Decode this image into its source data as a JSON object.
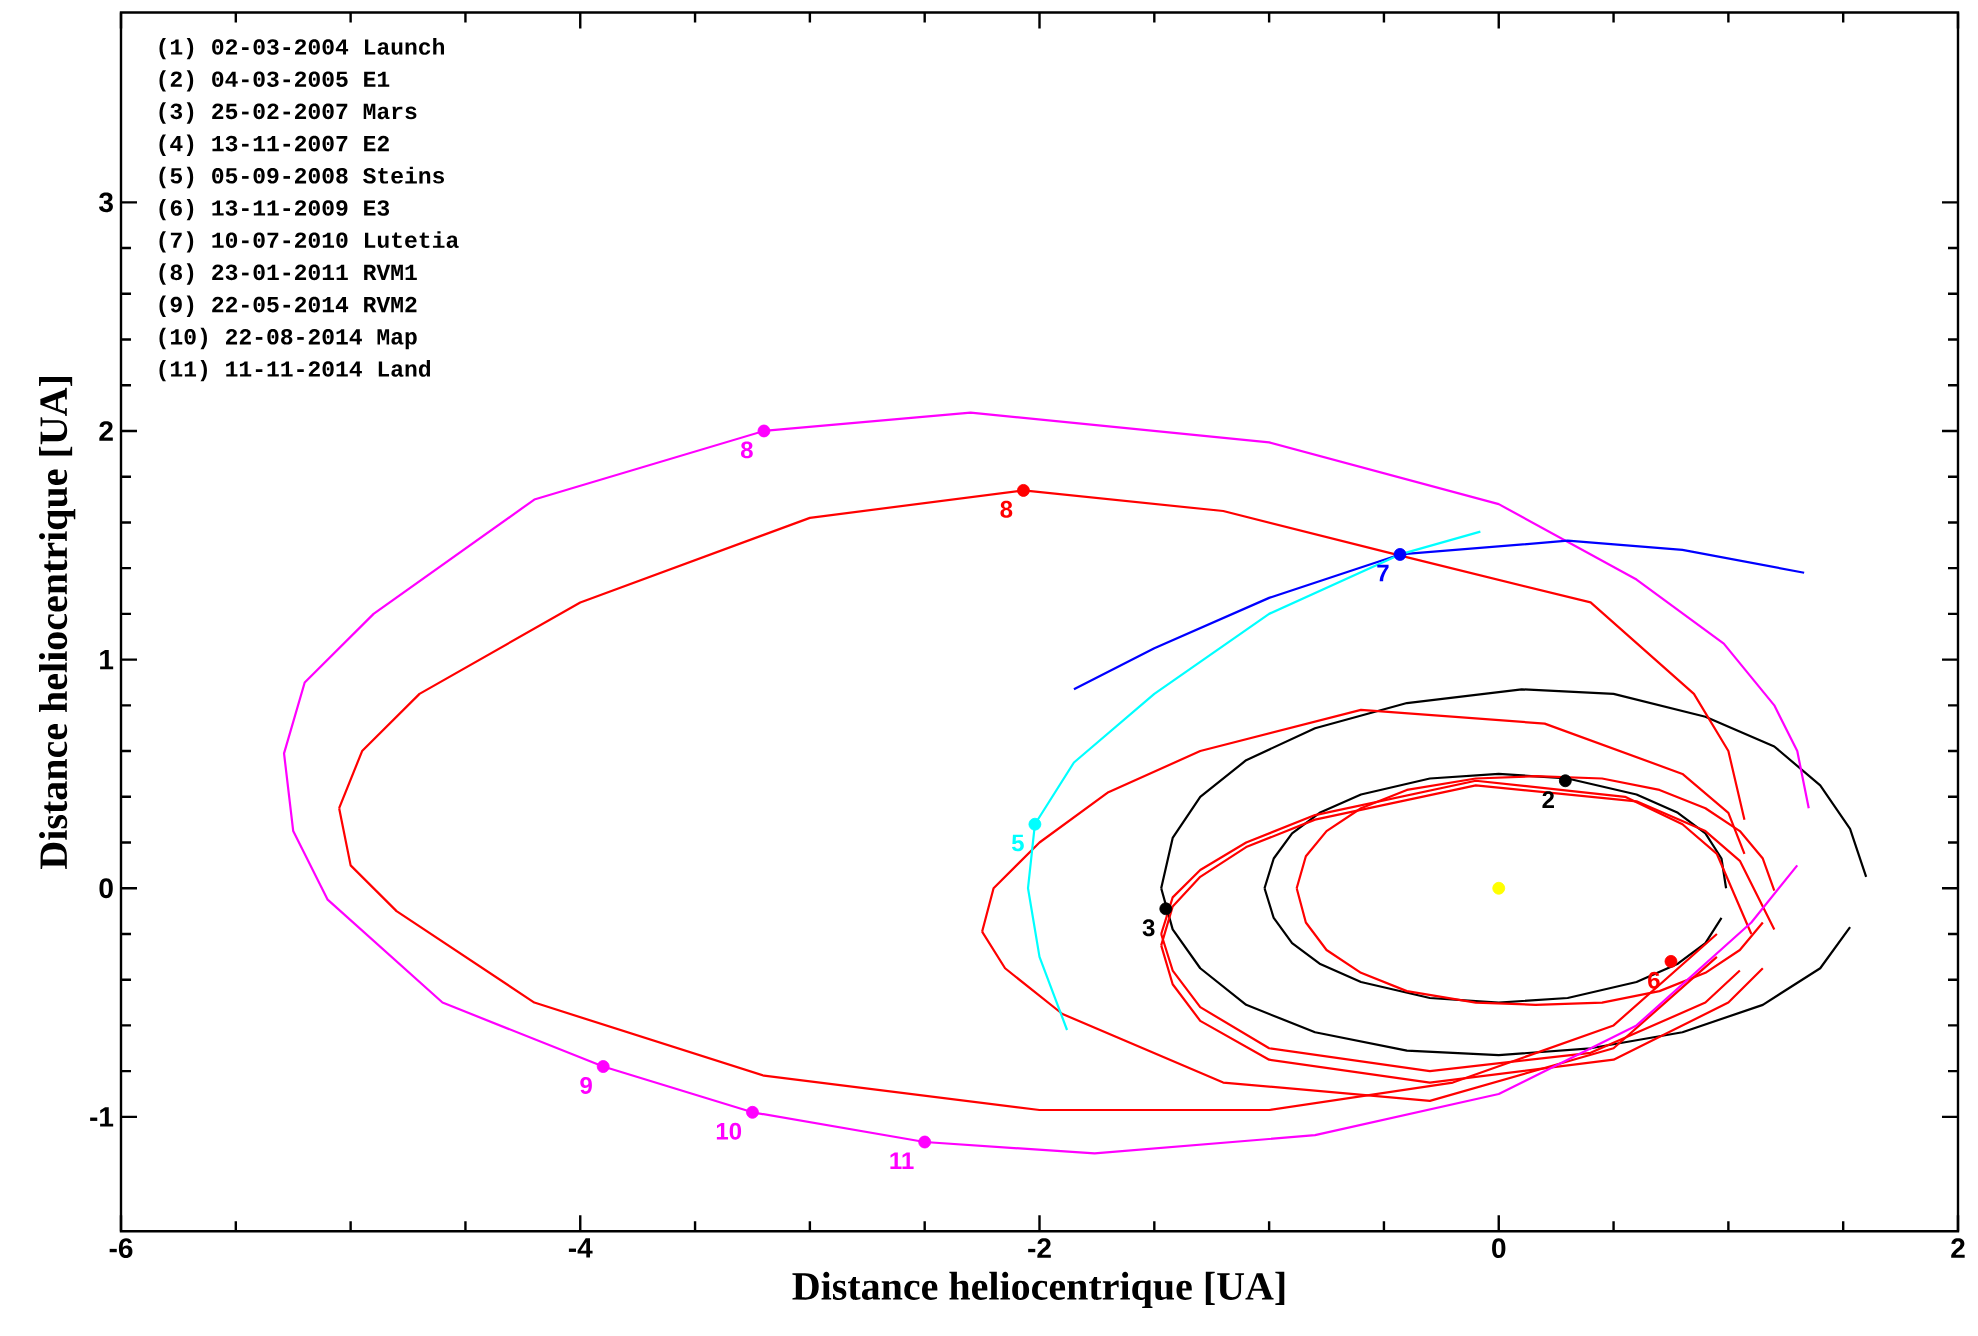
{
  "chart_data": {
    "type": "line",
    "xlabel": "Distance heliocentrique [UA]",
    "ylabel": "Distance heliocentrique [UA]",
    "xlim": [
      -6,
      2
    ],
    "ylim": [
      -1.5,
      3.83
    ],
    "xticks": [
      -6,
      -4,
      -2,
      0,
      2
    ],
    "yticks": [
      -1,
      0,
      1,
      2,
      3
    ],
    "annotations": [
      "(1) 02-03-2004 Launch",
      "(2) 04-03-2005 E1",
      "(3) 25-02-2007 Mars",
      "(4) 13-11-2007 E2",
      "(5) 05-09-2008 Steins",
      "(6) 13-11-2009 E3",
      "(7) 10-07-2010 Lutetia",
      "(8) 23-01-2011 RVM1",
      "(9) 22-05-2014 RVM2",
      "(10) 22-08-2014 Map",
      "(11) 11-11-2014 Land"
    ],
    "series": [
      {
        "color": "#000000",
        "x": [
          -1.02,
          -0.98,
          -0.9,
          -0.78,
          -0.6,
          -0.3,
          0,
          0.3,
          0.6,
          0.78,
          0.9,
          0.97,
          0.99
        ],
        "values": [
          0,
          0.13,
          0.24,
          0.33,
          0.41,
          0.48,
          0.5,
          0.48,
          0.41,
          0.33,
          0.24,
          0.13,
          0
        ]
      },
      {
        "color": "#000000",
        "x": [
          -1.02,
          -0.98,
          -0.9,
          -0.78,
          -0.6,
          -0.3,
          0,
          0.3,
          0.6,
          0.78,
          0.9,
          0.97
        ],
        "values": [
          0,
          -0.13,
          -0.24,
          -0.33,
          -0.41,
          -0.48,
          -0.5,
          -0.48,
          -0.41,
          -0.33,
          -0.24,
          -0.13
        ]
      },
      {
        "color": "#000000",
        "x": [
          -1.47,
          -1.42,
          -1.3,
          -1.1,
          -0.8,
          -0.4,
          0.1,
          0.5,
          0.9,
          1.2,
          1.4,
          1.53,
          1.6
        ],
        "values": [
          0,
          0.22,
          0.4,
          0.56,
          0.7,
          0.81,
          0.87,
          0.85,
          0.75,
          0.62,
          0.45,
          0.26,
          0.05
        ]
      },
      {
        "color": "#000000",
        "x": [
          -1.47,
          -1.42,
          -1.3,
          -1.1,
          -0.8,
          -0.4,
          0,
          0.4,
          0.8,
          1.15,
          1.4,
          1.53
        ],
        "values": [
          0,
          -0.18,
          -0.35,
          -0.51,
          -0.63,
          -0.71,
          -0.73,
          -0.7,
          -0.63,
          -0.51,
          -0.35,
          -0.17
        ]
      },
      {
        "color": "#ff0000",
        "x": [
          -0.88,
          -0.84,
          -0.75,
          -0.6,
          -0.4,
          -0.1,
          0.16,
          0.45,
          0.7,
          0.9,
          1.05,
          1.15,
          1.2
        ],
        "values": [
          0,
          0.14,
          0.25,
          0.35,
          0.43,
          0.48,
          0.49,
          0.48,
          0.43,
          0.35,
          0.25,
          0.13,
          -0.01
        ]
      },
      {
        "color": "#ff0000",
        "x": [
          -0.88,
          -0.84,
          -0.75,
          -0.6,
          -0.4,
          -0.1,
          0.16,
          0.45,
          0.7,
          0.9,
          1.05,
          1.15
        ],
        "values": [
          0,
          -0.15,
          -0.27,
          -0.37,
          -0.45,
          -0.5,
          -0.51,
          -0.5,
          -0.45,
          -0.37,
          -0.27,
          -0.15
        ]
      },
      {
        "color": "#ff0000",
        "x": [
          -2.25,
          -2.2,
          -2.0,
          -1.7,
          -1.3,
          -0.6,
          0.2,
          0.8,
          1.0,
          1.07
        ],
        "values": [
          -0.19,
          0,
          0.2,
          0.42,
          0.6,
          0.78,
          0.72,
          0.5,
          0.33,
          0.15
        ]
      },
      {
        "color": "#ff0000",
        "x": [
          -2.25,
          -2.15,
          -1.9,
          -1.2,
          -0.3,
          0.5,
          0.95
        ],
        "values": [
          -0.19,
          -0.35,
          -0.55,
          -0.85,
          -0.93,
          -0.7,
          -0.3
        ]
      },
      {
        "color": "#ff0000",
        "x": [
          -1.47,
          -1.42,
          -1.3,
          -1.1,
          -0.8,
          -0.1,
          0.6,
          0.9,
          1.05,
          1.2
        ],
        "values": [
          -0.25,
          -0.08,
          0.05,
          0.18,
          0.3,
          0.45,
          0.38,
          0.25,
          0.12,
          -0.18
        ]
      },
      {
        "color": "#ff0000",
        "x": [
          -1.47,
          -1.42,
          -1.3,
          -1.0,
          -0.3,
          0.5,
          1.0,
          1.15
        ],
        "values": [
          -0.25,
          -0.42,
          -0.58,
          -0.75,
          -0.85,
          -0.75,
          -0.5,
          -0.35
        ]
      },
      {
        "color": "#ff0000",
        "x": [
          -1.47,
          -1.42,
          -1.3,
          -1.1,
          -0.8,
          -0.1,
          0.55,
          0.8,
          0.95,
          1.1
        ],
        "values": [
          -0.2,
          -0.04,
          0.08,
          0.2,
          0.32,
          0.47,
          0.4,
          0.28,
          0.15,
          -0.2
        ]
      },
      {
        "color": "#ff0000",
        "x": [
          -1.47,
          -1.42,
          -1.3,
          -1.0,
          -0.3,
          0.4,
          0.9,
          1.05
        ],
        "values": [
          -0.2,
          -0.36,
          -0.52,
          -0.7,
          -0.8,
          -0.72,
          -0.5,
          -0.36
        ]
      },
      {
        "color": "#ff0000",
        "x": [
          -5.05,
          -4.95,
          -4.7,
          -4.0,
          -3.0,
          -2.07,
          -1.2,
          -0.45,
          0.4,
          0.85,
          1.0,
          1.07
        ],
        "values": [
          0.35,
          0.6,
          0.85,
          1.25,
          1.62,
          1.74,
          1.65,
          1.46,
          1.25,
          0.85,
          0.6,
          0.3
        ]
      },
      {
        "color": "#ff0000",
        "x": [
          -5.05,
          -5.0,
          -4.8,
          -4.2,
          -3.2,
          -2.0,
          -1.0,
          -0.2,
          0.5,
          0.95
        ],
        "values": [
          0.35,
          0.1,
          -0.1,
          -0.5,
          -0.82,
          -0.97,
          -0.97,
          -0.85,
          -0.6,
          -0.2
        ]
      },
      {
        "color": "#ff00ff",
        "x": [
          1.35,
          1.3,
          1.2,
          0.98,
          0.6,
          0,
          -1.0,
          -2.3,
          -3.2,
          -4.2,
          -4.9,
          -5.2,
          -5.29,
          -5.25,
          -5.1,
          -4.6,
          -3.9,
          -3.25,
          -2.5,
          -1.76,
          -0.8,
          0,
          0.6,
          1.1,
          1.3
        ],
        "values": [
          0.35,
          0.6,
          0.8,
          1.07,
          1.35,
          1.68,
          1.95,
          2.08,
          2.0,
          1.7,
          1.2,
          0.9,
          0.59,
          0.25,
          -0.05,
          -0.5,
          -0.78,
          -0.98,
          -1.11,
          -1.16,
          -1.08,
          -0.9,
          -0.6,
          -0.15,
          0.1
        ]
      },
      {
        "color": "#0000ff",
        "x": [
          1.33,
          0.8,
          0.3,
          -0.43,
          -1.0,
          -1.5,
          -1.85
        ],
        "values": [
          1.38,
          1.48,
          1.52,
          1.46,
          1.27,
          1.05,
          0.87
        ]
      },
      {
        "color": "#00ffff",
        "x": [
          -0.08,
          -0.43,
          -1.0,
          -1.5,
          -1.85,
          -2.02,
          -2.05,
          -2.0,
          -1.88
        ],
        "values": [
          1.56,
          1.46,
          1.2,
          0.85,
          0.55,
          0.28,
          0.0,
          -0.3,
          -0.62
        ]
      },
      {
        "type": "scatter",
        "marker": "circle",
        "color": "#ffff00",
        "x": [
          0
        ],
        "values": [
          0
        ]
      },
      {
        "type": "scatter",
        "marker": "circle",
        "name": "2",
        "color": "#000000",
        "x": [
          0.29
        ],
        "values": [
          0.47
        ]
      },
      {
        "type": "scatter",
        "marker": "circle",
        "name": "3",
        "color": "#000000",
        "x": [
          -1.45
        ],
        "values": [
          -0.09
        ]
      },
      {
        "type": "scatter",
        "marker": "circle",
        "name": "6",
        "color": "#ff0000",
        "x": [
          0.75
        ],
        "values": [
          -0.32
        ]
      },
      {
        "type": "scatter",
        "marker": "circle",
        "name": "5",
        "color": "#00ffff",
        "x": [
          -2.02
        ],
        "values": [
          0.28
        ]
      },
      {
        "type": "scatter",
        "marker": "circle",
        "name": "7",
        "color": "#0000ff",
        "x": [
          -0.43
        ],
        "values": [
          1.46
        ]
      },
      {
        "type": "scatter",
        "marker": "circle",
        "name": "8",
        "color": "#ff0000",
        "x": [
          -2.07
        ],
        "values": [
          1.74
        ]
      },
      {
        "type": "scatter",
        "marker": "circle",
        "name": "8",
        "color": "#ff00ff",
        "x": [
          -3.2
        ],
        "values": [
          2.0
        ]
      },
      {
        "type": "scatter",
        "marker": "circle",
        "name": "9",
        "color": "#ff00ff",
        "x": [
          -3.9
        ],
        "values": [
          -0.78
        ]
      },
      {
        "type": "scatter",
        "marker": "circle",
        "name": "10",
        "color": "#ff00ff",
        "x": [
          -3.25
        ],
        "values": [
          -0.98
        ]
      },
      {
        "type": "scatter",
        "marker": "circle",
        "name": "11",
        "color": "#ff00ff",
        "x": [
          -2.5
        ],
        "values": [
          -1.11
        ]
      }
    ]
  }
}
